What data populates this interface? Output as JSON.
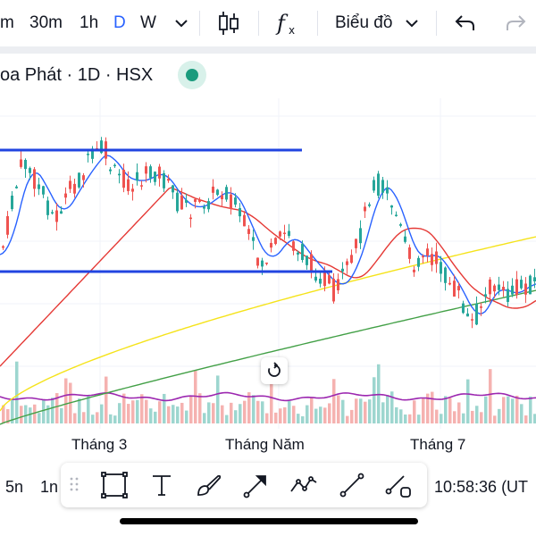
{
  "toolbar": {
    "intervals": [
      "m",
      "30m",
      "1h",
      "D",
      "W"
    ],
    "active_interval": "D",
    "chart_type_label": "Biểu đồ",
    "icons": [
      "chevron-down-icon",
      "candlestick-icon",
      "indicators-fx-icon",
      "undo-icon",
      "redo-icon"
    ]
  },
  "symbol": {
    "title": "oa Phát · 1D · HSX",
    "status": "market-open",
    "status_color": "#1a9b7d"
  },
  "colors": {
    "up": "#26a69a",
    "down": "#ef5350",
    "ma_fast": "#2962ff",
    "ma_mid": "#e53935",
    "ma_slow": "#f5e31b",
    "ma_long": "#43a047",
    "volume_ma": "#9c27b0",
    "drawn_lines": "#2144e0"
  },
  "time_axis": {
    "labels": [
      "Tháng 3",
      "Tháng Năm",
      "Tháng 7"
    ]
  },
  "bottom": {
    "left_items": [
      "5n",
      "1n"
    ],
    "clock": "10:58:36 (UT",
    "drawing_tools": [
      "rectangle-icon",
      "text-icon",
      "brush-icon",
      "arrow-icon",
      "path-icon",
      "trend-line-icon",
      "ray-icon"
    ]
  }
}
